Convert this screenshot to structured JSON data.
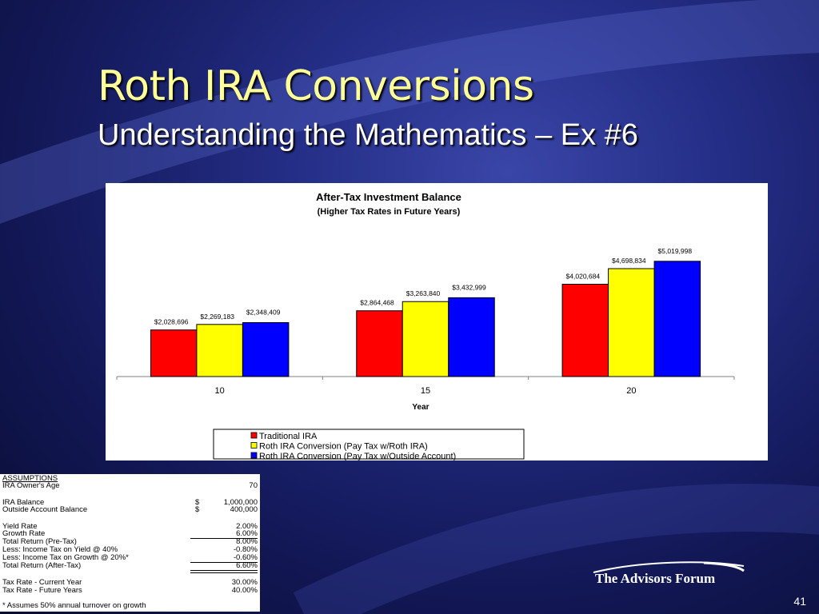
{
  "slide": {
    "title": "Roth IRA Conversions",
    "subtitle": "Understanding the Mathematics – Ex #6",
    "page_number": "41",
    "logo_text": "The Advisors Forum",
    "colors": {
      "title": "#ffff99",
      "background": "#1c2472"
    }
  },
  "chart_data": {
    "type": "bar",
    "title": "After-Tax Investment Balance",
    "subtitle": "(Higher Tax Rates in Future Years)",
    "xlabel": "Year",
    "ylabel": "",
    "categories": [
      "10",
      "15",
      "20"
    ],
    "ylim": [
      0,
      5500000
    ],
    "grid": false,
    "legend_position": "bottom",
    "series": [
      {
        "name": "Traditional IRA",
        "color": "#ff0000",
        "values": [
          2028696,
          2864468,
          4020684
        ],
        "labels": [
          "$2,028,696",
          "$2,864,468",
          "$4,020,684"
        ]
      },
      {
        "name": "Roth IRA Conversion (Pay Tax w/Roth IRA)",
        "color": "#ffff00",
        "values": [
          2269183,
          3263840,
          4698834
        ],
        "labels": [
          "$2,269,183",
          "$3,263,840",
          "$4,698,834"
        ]
      },
      {
        "name": "Roth IRA Conversion (Pay Tax w/Outside Account)",
        "color": "#0000ff",
        "values": [
          2348409,
          3432999,
          5019998
        ],
        "labels": [
          "$2,348,409",
          "$3,432,999",
          "$5,019,998"
        ]
      }
    ]
  },
  "assumptions": {
    "heading": "ASSUMPTIONS",
    "owners_age": {
      "label": "IRA Owner's Age",
      "value": "70"
    },
    "ira_balance": {
      "label": "IRA Balance",
      "currency": "$",
      "value": "1,000,000"
    },
    "outside_balance": {
      "label": "Outside Account Balance",
      "currency": "$",
      "value": "400,000"
    },
    "yield_rate": {
      "label": "Yield Rate",
      "value": "2.00%"
    },
    "growth_rate": {
      "label": "Growth Rate",
      "value": "6.00%"
    },
    "total_return_pretax": {
      "label": "Total Return (Pre-Tax)",
      "value": "8.00%"
    },
    "tax_on_yield": {
      "label": "Less: Income Tax on Yield @ 40%",
      "value": "-0.80%"
    },
    "tax_on_growth": {
      "label": "Less: Income Tax on Growth @ 20%*",
      "value": "-0.60%"
    },
    "total_return_aftertax": {
      "label": "Total Return (After-Tax)",
      "value": "6.60%"
    },
    "tax_rate_current": {
      "label": "Tax Rate - Current Year",
      "value": "30.00%"
    },
    "tax_rate_future": {
      "label": "Tax Rate - Future Years",
      "value": "40.00%"
    },
    "footnote": "* Assumes 50% annual turnover on growth"
  }
}
